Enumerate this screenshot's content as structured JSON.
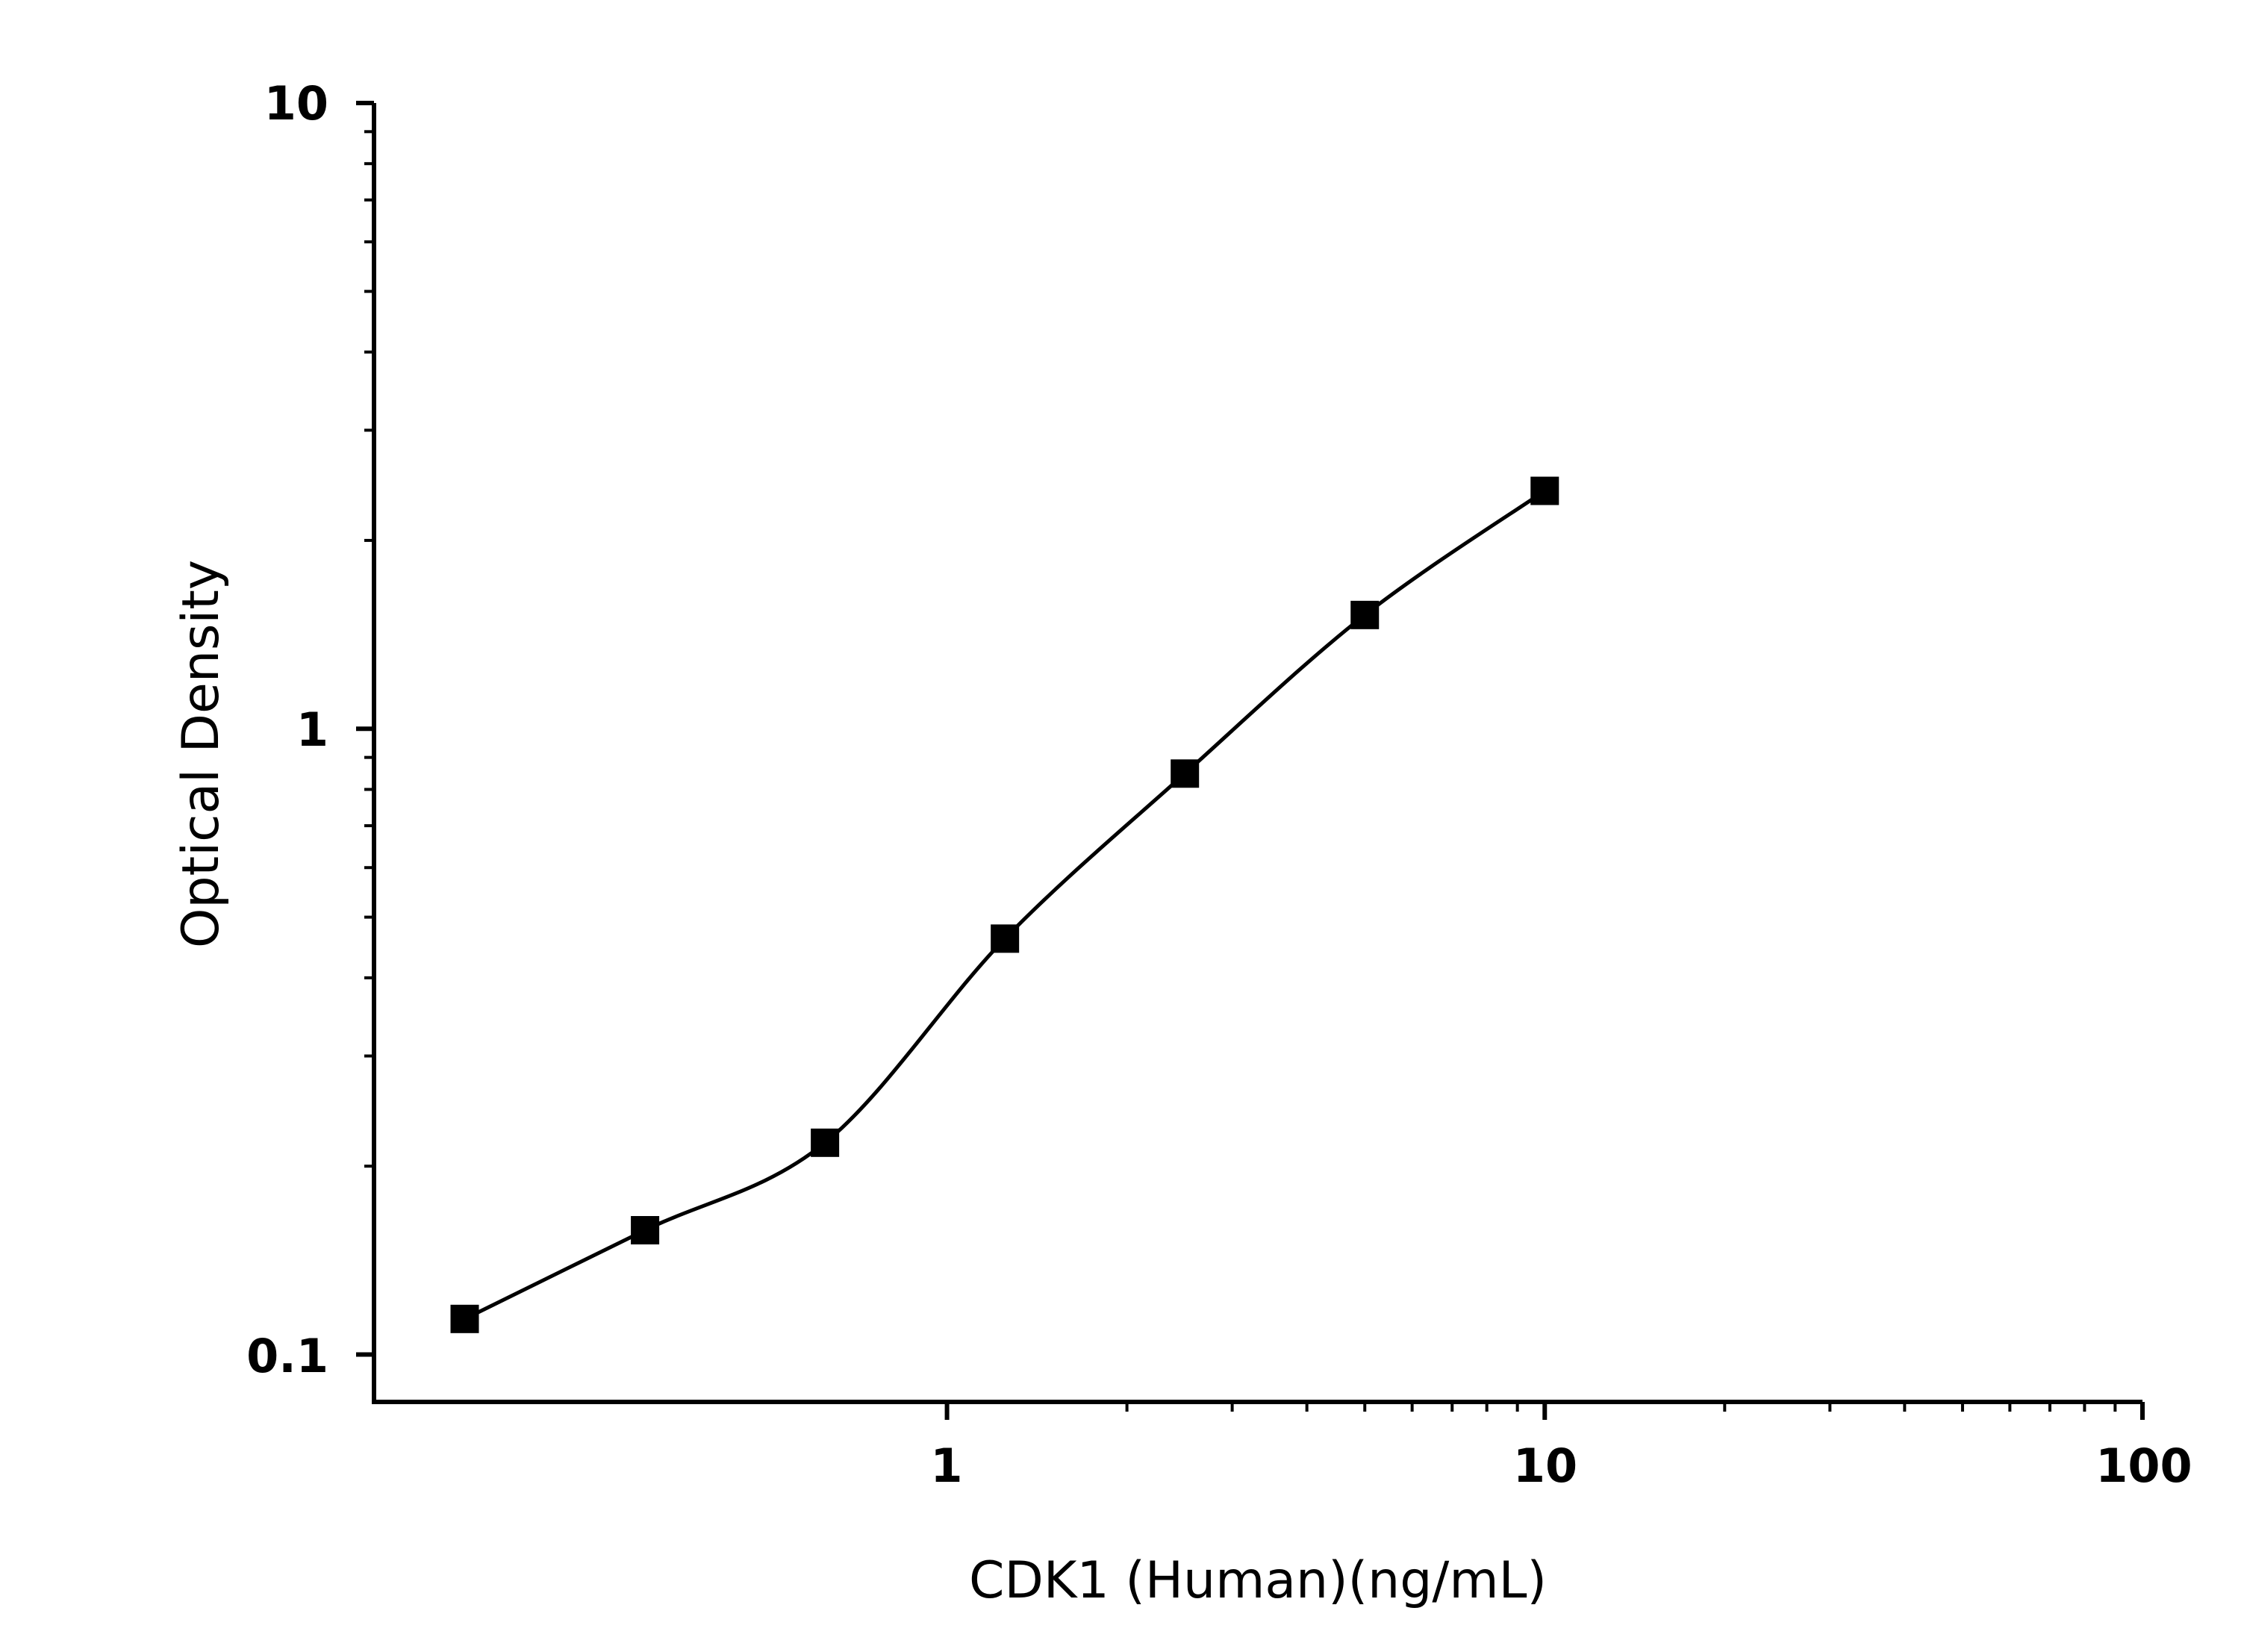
{
  "chart_data": {
    "type": "scatter",
    "title": "",
    "xlabel": "CDK1 (Human)(ng/mL)",
    "ylabel": "Optical Density",
    "x_scale": "log",
    "y_scale": "log",
    "xlim": [
      0.11,
      100
    ],
    "ylim": [
      0.084,
      10
    ],
    "x_ticks": [
      "1",
      "10",
      "100"
    ],
    "y_ticks": [
      "0.1",
      "1",
      "10"
    ],
    "grid": false,
    "legend": "none",
    "marker": "square",
    "color": "#000000",
    "points": [
      {
        "x": 0.156,
        "y": 0.114
      },
      {
        "x": 0.3125,
        "y": 0.158
      },
      {
        "x": 0.625,
        "y": 0.218
      },
      {
        "x": 1.25,
        "y": 0.462
      },
      {
        "x": 2.5,
        "y": 0.848
      },
      {
        "x": 5,
        "y": 1.52
      },
      {
        "x": 10,
        "y": 2.4
      }
    ],
    "fit_curve": "smooth fitted curve through standards"
  }
}
